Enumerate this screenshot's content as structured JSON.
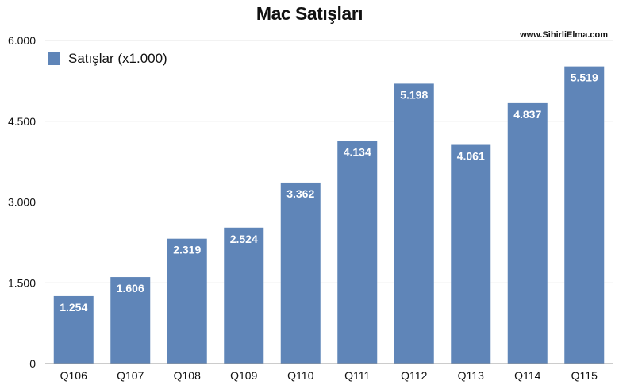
{
  "chart_data": {
    "type": "bar",
    "title": "Mac Satışları",
    "watermark": "www.SihirliElma.com",
    "xlabel": "",
    "ylabel": "",
    "categories": [
      "Q106",
      "Q107",
      "Q108",
      "Q109",
      "Q110",
      "Q111",
      "Q112",
      "Q113",
      "Q114",
      "Q115"
    ],
    "series": [
      {
        "name": "Satışlar (x1.000)",
        "values": [
          1254,
          1606,
          2319,
          2524,
          3362,
          4134,
          5198,
          4061,
          4837,
          5519
        ],
        "value_labels": [
          "1.254",
          "1.606",
          "2.319",
          "2.524",
          "3.362",
          "4.134",
          "5.198",
          "4.061",
          "4.837",
          "5.519"
        ],
        "color": "#5f85b8"
      }
    ],
    "ylim": [
      0,
      6000
    ],
    "yticks": [
      0,
      1500,
      3000,
      4500,
      6000
    ],
    "ytick_labels": [
      "0",
      "1.500",
      "3.000",
      "4.500",
      "6.000"
    ],
    "grid": true,
    "legend_position": "top-left"
  }
}
